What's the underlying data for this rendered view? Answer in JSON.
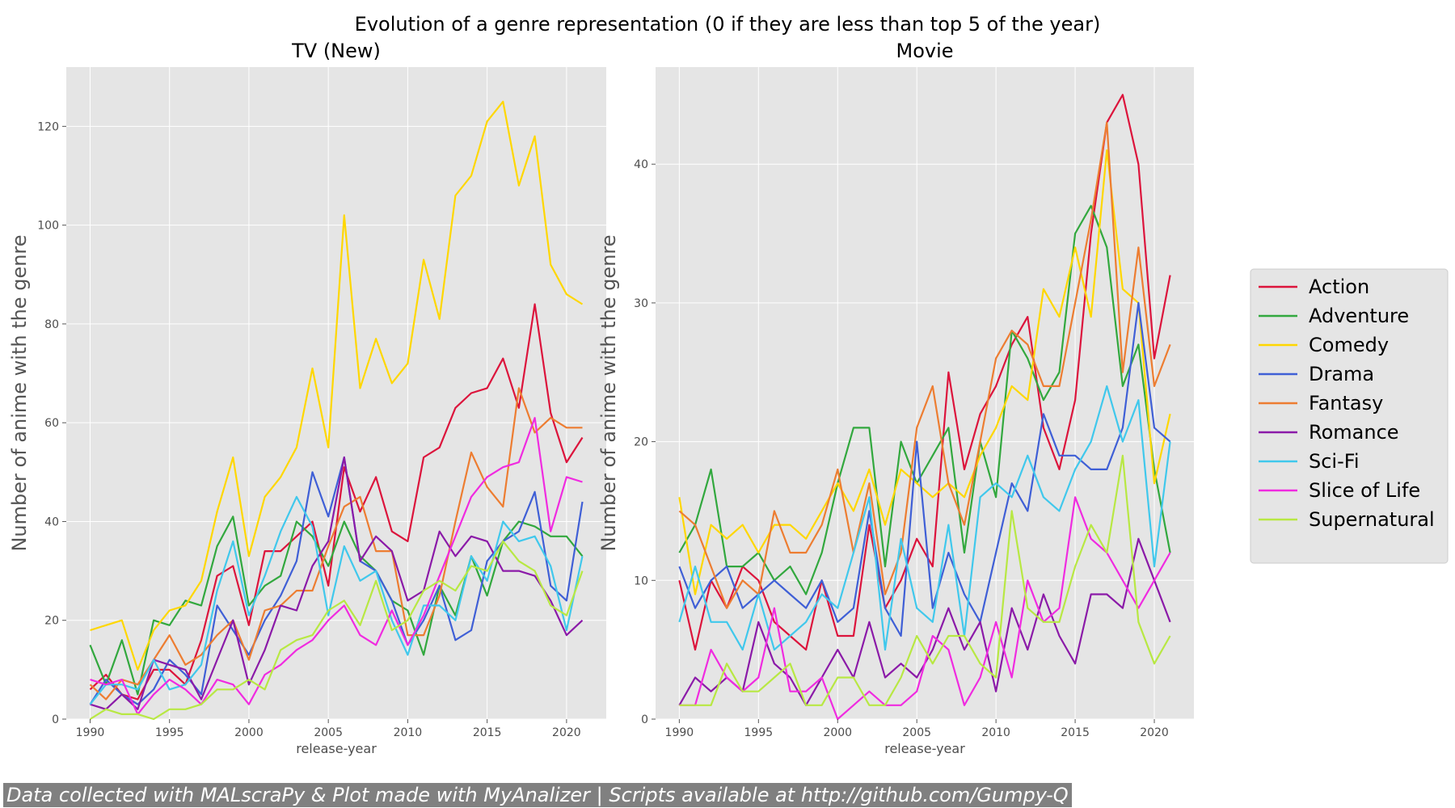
{
  "figure": {
    "suptitle": "Evolution of a genre representation (0 if they are less than top 5 of the year)",
    "footer": "Data collected with MALscraPy & Plot made with MyAnalizer | Scripts available at http://github.com/Gumpy-Q"
  },
  "legend": {
    "position": "right",
    "entries": [
      {
        "name": "Action",
        "color": "#dc143c"
      },
      {
        "name": "Adventure",
        "color": "#32a83e"
      },
      {
        "name": "Comedy",
        "color": "#ffd700"
      },
      {
        "name": "Drama",
        "color": "#3f5fd6"
      },
      {
        "name": "Fantasy",
        "color": "#ed7d31"
      },
      {
        "name": "Romance",
        "color": "#8b1aa8"
      },
      {
        "name": "Sci-Fi",
        "color": "#40c8ec"
      },
      {
        "name": "Slice of Life",
        "color": "#f02be0"
      },
      {
        "name": "Supernatural",
        "color": "#b8e843"
      }
    ]
  },
  "chart_data": [
    {
      "type": "line",
      "title": "TV (New)",
      "xlabel": "release-year",
      "ylabel": "Number of anime with the genre",
      "xlim": [
        1988.5,
        2022.5
      ],
      "ylim": [
        0,
        132
      ],
      "xticks": [
        1990,
        1995,
        2000,
        2005,
        2010,
        2015,
        2020
      ],
      "yticks": [
        0,
        20,
        40,
        60,
        80,
        100,
        120
      ],
      "grid": true,
      "x": [
        1990,
        1991,
        1992,
        1993,
        1994,
        1995,
        1996,
        1997,
        1998,
        1999,
        2000,
        2001,
        2002,
        2003,
        2004,
        2005,
        2006,
        2007,
        2008,
        2009,
        2010,
        2011,
        2012,
        2013,
        2014,
        2015,
        2016,
        2017,
        2018,
        2019,
        2020,
        2021
      ],
      "series": [
        {
          "name": "Action",
          "values": [
            6,
            9,
            5,
            4,
            10,
            10,
            7,
            16,
            29,
            31,
            19,
            34,
            34,
            37,
            40,
            27,
            51,
            42,
            49,
            38,
            36,
            53,
            55,
            63,
            66,
            67,
            73,
            63,
            84,
            62,
            52,
            57
          ]
        },
        {
          "name": "Adventure",
          "values": [
            15,
            7,
            16,
            5,
            20,
            19,
            24,
            23,
            35,
            41,
            23,
            27,
            29,
            40,
            37,
            31,
            40,
            33,
            30,
            24,
            22,
            13,
            27,
            21,
            33,
            25,
            36,
            40,
            39,
            37,
            37,
            33
          ]
        },
        {
          "name": "Comedy",
          "values": [
            18,
            19,
            20,
            10,
            18,
            22,
            23,
            28,
            42,
            53,
            33,
            45,
            49,
            55,
            71,
            55,
            102,
            67,
            77,
            68,
            72,
            93,
            81,
            106,
            110,
            121,
            125,
            108,
            118,
            92,
            86,
            84
          ]
        },
        {
          "name": "Drama",
          "values": [
            3,
            8,
            5,
            3,
            6,
            12,
            9,
            5,
            23,
            18,
            13,
            20,
            25,
            32,
            50,
            41,
            53,
            32,
            30,
            24,
            15,
            20,
            27,
            16,
            18,
            32,
            36,
            38,
            46,
            27,
            24,
            44
          ]
        },
        {
          "name": "Fantasy",
          "values": [
            7,
            4,
            8,
            7,
            12,
            17,
            11,
            13,
            17,
            20,
            12,
            22,
            23,
            26,
            26,
            35,
            43,
            45,
            34,
            34,
            17,
            17,
            25,
            40,
            54,
            47,
            43,
            67,
            58,
            61,
            59,
            59
          ]
        },
        {
          "name": "Romance",
          "values": [
            3,
            2,
            5,
            2,
            12,
            11,
            10,
            4,
            12,
            20,
            7,
            14,
            23,
            22,
            31,
            36,
            53,
            32,
            37,
            34,
            24,
            26,
            38,
            33,
            37,
            36,
            30,
            30,
            29,
            24,
            17,
            20
          ]
        },
        {
          "name": "Sci-Fi",
          "values": [
            3,
            7,
            7,
            6,
            12,
            6,
            7,
            11,
            26,
            36,
            21,
            29,
            38,
            45,
            39,
            21,
            35,
            28,
            30,
            20,
            13,
            23,
            23,
            20,
            33,
            28,
            40,
            36,
            37,
            31,
            18,
            33
          ]
        },
        {
          "name": "Slice of Life",
          "values": [
            8,
            7,
            8,
            1,
            5,
            8,
            6,
            3,
            8,
            7,
            3,
            9,
            11,
            14,
            16,
            20,
            23,
            17,
            15,
            22,
            15,
            21,
            29,
            37,
            45,
            49,
            51,
            52,
            61,
            38,
            49,
            48
          ]
        },
        {
          "name": "Supernatural",
          "values": [
            0,
            2,
            1,
            1,
            0,
            2,
            2,
            3,
            6,
            6,
            8,
            6,
            14,
            16,
            17,
            22,
            24,
            19,
            28,
            18,
            20,
            26,
            28,
            26,
            31,
            30,
            36,
            32,
            30,
            23,
            21,
            30
          ]
        }
      ]
    },
    {
      "type": "line",
      "title": "Movie",
      "xlabel": "release-year",
      "ylabel": "Number of anime with the genre",
      "xlim": [
        1988.5,
        2022.5
      ],
      "ylim": [
        0,
        47
      ],
      "xticks": [
        1990,
        1995,
        2000,
        2005,
        2010,
        2015,
        2020
      ],
      "yticks": [
        0,
        10,
        20,
        30,
        40
      ],
      "grid": true,
      "x": [
        1990,
        1991,
        1992,
        1993,
        1994,
        1995,
        1996,
        1997,
        1998,
        1999,
        2000,
        2001,
        2002,
        2003,
        2004,
        2005,
        2006,
        2007,
        2008,
        2009,
        2010,
        2011,
        2012,
        2013,
        2014,
        2015,
        2016,
        2017,
        2018,
        2019,
        2020,
        2021
      ],
      "series": [
        {
          "name": "Action",
          "values": [
            10,
            5,
            10,
            8,
            11,
            10,
            7,
            6,
            5,
            10,
            6,
            6,
            14,
            8,
            10,
            13,
            11,
            25,
            18,
            22,
            24,
            27,
            29,
            21,
            18,
            23,
            35,
            43,
            45,
            40,
            26,
            32
          ]
        },
        {
          "name": "Adventure",
          "values": [
            12,
            14,
            18,
            11,
            11,
            12,
            10,
            11,
            9,
            12,
            17,
            21,
            21,
            11,
            20,
            17,
            19,
            21,
            12,
            20,
            16,
            28,
            26,
            23,
            25,
            35,
            37,
            34,
            24,
            27,
            18,
            12
          ]
        },
        {
          "name": "Comedy",
          "values": [
            16,
            9,
            14,
            13,
            14,
            12,
            14,
            14,
            13,
            15,
            17,
            15,
            18,
            14,
            18,
            17,
            16,
            17,
            16,
            19,
            21,
            24,
            23,
            31,
            29,
            34,
            29,
            41,
            31,
            30,
            17,
            22
          ]
        },
        {
          "name": "Drama",
          "values": [
            11,
            8,
            10,
            11,
            8,
            9,
            10,
            9,
            8,
            10,
            7,
            8,
            15,
            8,
            6,
            20,
            8,
            12,
            9,
            7,
            12,
            17,
            15,
            22,
            19,
            19,
            18,
            18,
            21,
            30,
            21,
            20
          ]
        },
        {
          "name": "Fantasy",
          "values": [
            15,
            14,
            11,
            8,
            10,
            9,
            15,
            12,
            12,
            14,
            18,
            12,
            17,
            9,
            12,
            21,
            24,
            17,
            14,
            20,
            26,
            28,
            27,
            24,
            24,
            30,
            36,
            43,
            25,
            34,
            24,
            27
          ]
        },
        {
          "name": "Romance",
          "values": [
            1,
            3,
            2,
            3,
            2,
            7,
            4,
            3,
            1,
            3,
            5,
            3,
            7,
            3,
            4,
            3,
            5,
            8,
            5,
            7,
            2,
            8,
            5,
            9,
            6,
            4,
            9,
            9,
            8,
            13,
            10,
            7
          ]
        },
        {
          "name": "Sci-Fi",
          "values": [
            7,
            11,
            7,
            7,
            5,
            9,
            5,
            6,
            7,
            9,
            8,
            12,
            16,
            5,
            13,
            8,
            7,
            14,
            6,
            16,
            17,
            16,
            19,
            16,
            15,
            18,
            20,
            24,
            20,
            23,
            11,
            20
          ]
        },
        {
          "name": "Slice of Life",
          "values": [
            1,
            1,
            5,
            3,
            2,
            3,
            8,
            2,
            2,
            3,
            0,
            1,
            2,
            1,
            1,
            2,
            6,
            5,
            1,
            3,
            7,
            3,
            10,
            7,
            8,
            16,
            13,
            12,
            10,
            8,
            10,
            12
          ]
        },
        {
          "name": "Supernatural",
          "values": [
            1,
            1,
            1,
            4,
            2,
            2,
            3,
            4,
            1,
            1,
            3,
            3,
            1,
            1,
            3,
            6,
            4,
            6,
            6,
            4,
            3,
            15,
            8,
            7,
            7,
            11,
            14,
            12,
            19,
            7,
            4,
            6
          ]
        }
      ]
    }
  ]
}
